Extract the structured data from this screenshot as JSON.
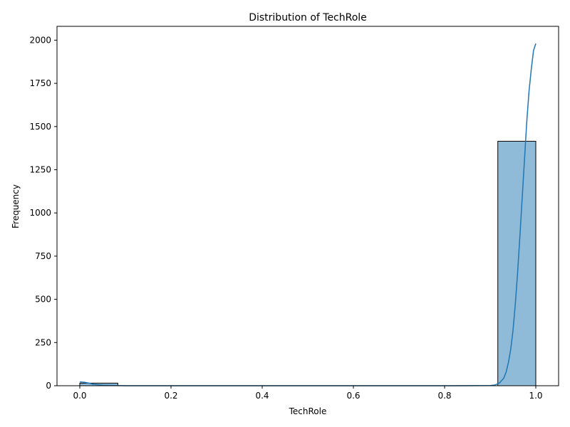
{
  "chart_data": {
    "type": "bar",
    "title": "Distribution of TechRole",
    "xlabel": "TechRole",
    "ylabel": "Frequency",
    "xlim": [
      -0.05,
      1.05
    ],
    "ylim": [
      0,
      2080
    ],
    "xticks": [
      0.0,
      0.2,
      0.4,
      0.6,
      0.8,
      1.0
    ],
    "xtick_labels": [
      "0.0",
      "0.2",
      "0.4",
      "0.6",
      "0.8",
      "1.0"
    ],
    "yticks": [
      0,
      250,
      500,
      750,
      1000,
      1250,
      1500,
      1750,
      2000
    ],
    "ytick_labels": [
      "0",
      "250",
      "500",
      "750",
      "1000",
      "1250",
      "1500",
      "1750",
      "2000"
    ],
    "bins": [
      {
        "x0": 0.0,
        "x1": 0.0833,
        "count": 15
      },
      {
        "x0": 0.0833,
        "x1": 0.1667,
        "count": 0
      },
      {
        "x0": 0.1667,
        "x1": 0.25,
        "count": 0
      },
      {
        "x0": 0.25,
        "x1": 0.3333,
        "count": 0
      },
      {
        "x0": 0.3333,
        "x1": 0.4167,
        "count": 0
      },
      {
        "x0": 0.4167,
        "x1": 0.5,
        "count": 0
      },
      {
        "x0": 0.5,
        "x1": 0.5833,
        "count": 0
      },
      {
        "x0": 0.5833,
        "x1": 0.6667,
        "count": 0
      },
      {
        "x0": 0.6667,
        "x1": 0.75,
        "count": 0
      },
      {
        "x0": 0.75,
        "x1": 0.8333,
        "count": 0
      },
      {
        "x0": 0.8333,
        "x1": 0.9167,
        "count": 0
      },
      {
        "x0": 0.9167,
        "x1": 1.0,
        "count": 1415
      }
    ],
    "kde": {
      "x": [
        0.0,
        0.01,
        0.02,
        0.03,
        0.05,
        0.08,
        0.1,
        0.2,
        0.4,
        0.6,
        0.8,
        0.9,
        0.91,
        0.92,
        0.93,
        0.935,
        0.94,
        0.945,
        0.95,
        0.955,
        0.96,
        0.965,
        0.97,
        0.975,
        0.98,
        0.985,
        0.99,
        0.995,
        1.0
      ],
      "y": [
        22,
        20,
        15,
        8,
        3,
        1,
        0,
        0,
        0,
        0,
        0,
        1,
        4,
        15,
        45,
        80,
        135,
        210,
        320,
        470,
        650,
        860,
        1080,
        1300,
        1520,
        1700,
        1830,
        1940,
        1980
      ]
    },
    "bar_color": "#1f77b4",
    "bar_opacity": 0.5,
    "edge_color": "#000000",
    "line_color": "#1f77b4",
    "grid": false,
    "legend": "none"
  }
}
